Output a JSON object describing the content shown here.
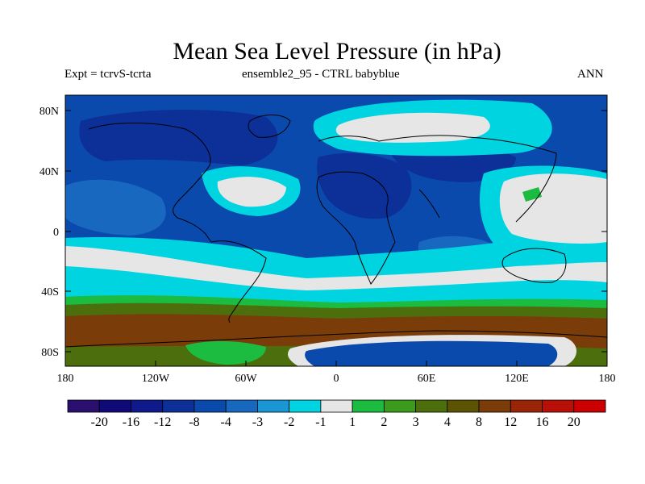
{
  "title": "Mean Sea Level Pressure (in hPa)",
  "subtitle_left": "Expt = tcrvS-tcrta",
  "subtitle_center": "ensemble2_95 - CTRL babyblue",
  "subtitle_right": "ANN",
  "lat_labels": [
    "80N",
    "40N",
    "0",
    "40S",
    "80S"
  ],
  "lon_labels": [
    "180",
    "120W",
    "60W",
    "0",
    "60E",
    "120E",
    "180"
  ],
  "colorbar": {
    "labels": [
      "-20",
      "-16",
      "-12",
      "-8",
      "-4",
      "-3",
      "-2",
      "-1",
      "1",
      "2",
      "3",
      "4",
      "8",
      "12",
      "16",
      "20"
    ],
    "colors": [
      "#2a0f6e",
      "#100a78",
      "#0e1a8c",
      "#0c3098",
      "#0a4aac",
      "#1868c0",
      "#1a96d4",
      "#00d4e0",
      "#e6e6e6",
      "#1cbc40",
      "#3c9a1c",
      "#4c6e0c",
      "#5c5404",
      "#7a3c08",
      "#9a2408",
      "#b81008",
      "#cc0000"
    ]
  },
  "fill_colors": {
    "ocean_blue": "#0a4aac",
    "mid_blue": "#1868c0",
    "deep_blue": "#0c3098",
    "cyan": "#00d4e0",
    "light": "#e6e6e6",
    "green": "#1cbc40",
    "olive": "#4c6e0c",
    "brown": "#7a3c08"
  }
}
